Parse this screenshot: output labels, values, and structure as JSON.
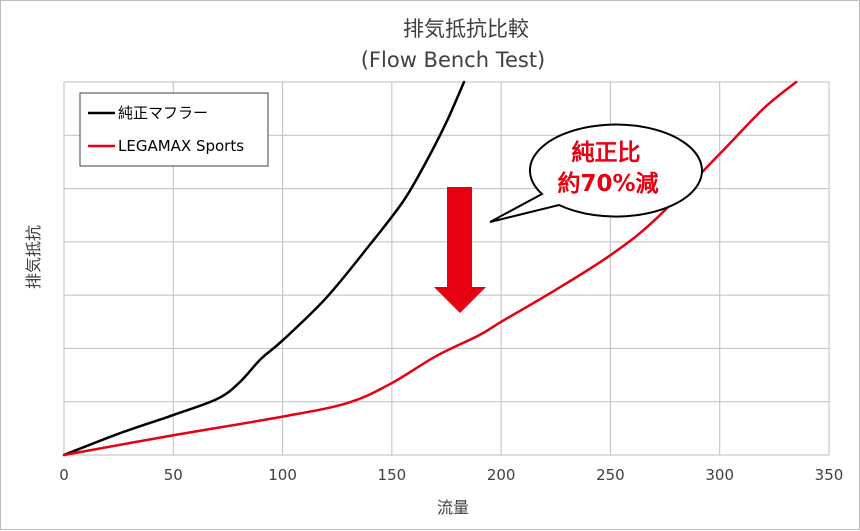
{
  "chart_data": {
    "type": "line",
    "title": "排気抵抗比較",
    "subtitle": "(Flow Bench Test)",
    "xlabel": "流量",
    "ylabel": "排気抵抗",
    "xlim": [
      0,
      350
    ],
    "x_ticks": [
      0,
      50,
      100,
      150,
      200,
      250,
      300,
      350
    ],
    "ylim": [
      0,
      7
    ],
    "y_ticks_labeled": false,
    "grid": true,
    "legend_position": "top-left",
    "series": [
      {
        "name": "純正マフラー",
        "color": "#000000",
        "points": [
          [
            0,
            0
          ],
          [
            25,
            0.4
          ],
          [
            50,
            0.75
          ],
          [
            70,
            1.05
          ],
          [
            80,
            1.35
          ],
          [
            90,
            1.8
          ],
          [
            100,
            2.15
          ],
          [
            120,
            2.95
          ],
          [
            140,
            3.95
          ],
          [
            155,
            4.75
          ],
          [
            165,
            5.45
          ],
          [
            175,
            6.25
          ],
          [
            183,
            7.0
          ]
        ]
      },
      {
        "name": "LEGAMAX Sports",
        "color": "#e60012",
        "points": [
          [
            0,
            0
          ],
          [
            50,
            0.37
          ],
          [
            100,
            0.72
          ],
          [
            130,
            0.98
          ],
          [
            150,
            1.35
          ],
          [
            170,
            1.85
          ],
          [
            190,
            2.25
          ],
          [
            200,
            2.5
          ],
          [
            225,
            3.1
          ],
          [
            250,
            3.75
          ],
          [
            270,
            4.4
          ],
          [
            300,
            5.65
          ],
          [
            320,
            6.5
          ],
          [
            335,
            7.0
          ]
        ]
      }
    ],
    "annotation": {
      "line1": "純正比",
      "line2": "約70%減",
      "color": "#e60012",
      "arrow_direction": "down"
    }
  }
}
